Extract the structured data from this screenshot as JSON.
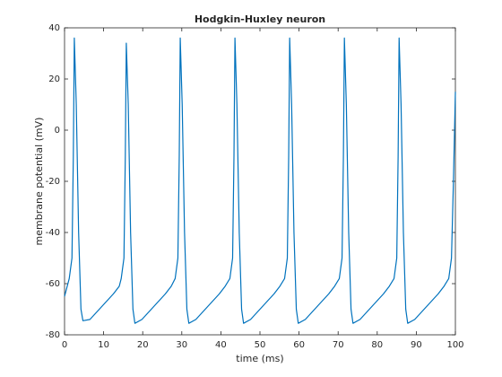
{
  "chart_data": {
    "type": "line",
    "title": "Hodgkin-Huxley neuron",
    "x_label": "time (ms)",
    "y_label": "membrane potential (mV)",
    "x": [
      0,
      1.2,
      1.9,
      2.25,
      2.5,
      3.0,
      3.6,
      4.2,
      4.7,
      6.5,
      9.5,
      12.5,
      14.0,
      14.5,
      15.2,
      15.55,
      15.8,
      16.3,
      16.9,
      17.5,
      18.0,
      19.8,
      22.8,
      25.8,
      27.3,
      28.3,
      29.0,
      29.35,
      29.6,
      30.1,
      30.7,
      31.3,
      31.8,
      33.6,
      36.6,
      39.6,
      41.1,
      42.3,
      43.0,
      43.35,
      43.6,
      44.1,
      44.7,
      45.3,
      45.8,
      47.6,
      50.6,
      53.6,
      55.1,
      56.3,
      57.0,
      57.35,
      57.6,
      58.1,
      58.7,
      59.3,
      59.8,
      61.6,
      64.6,
      67.6,
      69.1,
      70.3,
      71.0,
      71.35,
      71.6,
      72.1,
      72.7,
      73.3,
      73.8,
      75.6,
      78.6,
      81.6,
      83.1,
      84.3,
      85.0,
      85.35,
      85.6,
      86.1,
      86.7,
      87.3,
      87.8,
      89.6,
      92.6,
      95.6,
      97.1,
      98.3,
      99.0,
      99.5,
      100
    ],
    "series": [
      {
        "color": "#0072bd",
        "values": [
          -65,
          -58,
          -50,
          -10,
          36,
          10,
          -40,
          -70,
          -74.5,
          -74,
          -69,
          -64,
          -61,
          -58,
          -50,
          -10,
          34,
          10,
          -40,
          -70,
          -75.5,
          -74,
          -69,
          -64,
          -61,
          -58,
          -50,
          -10,
          36,
          10,
          -40,
          -70,
          -75.5,
          -74,
          -69,
          -64,
          -61,
          -58,
          -50,
          -10,
          36,
          10,
          -40,
          -70,
          -75.5,
          -74,
          -69,
          -64,
          -61,
          -58,
          -50,
          -10,
          36,
          10,
          -40,
          -70,
          -75.5,
          -74,
          -69,
          -64,
          -61,
          -58,
          -50,
          -10,
          36,
          10,
          -40,
          -70,
          -75.5,
          -74,
          -69,
          -64,
          -61,
          -58,
          -50,
          -10,
          36,
          10,
          -40,
          -70,
          -75.5,
          -74,
          -69,
          -64,
          -61,
          -58,
          -50,
          -20,
          15
        ]
      }
    ],
    "xlim": [
      0,
      100
    ],
    "xticks": [
      0,
      10,
      20,
      30,
      40,
      50,
      60,
      70,
      80,
      90,
      100
    ],
    "ylim": [
      -80,
      40
    ],
    "yticks": [
      -80,
      -60,
      -40,
      -20,
      0,
      20,
      40
    ],
    "grid": false
  }
}
